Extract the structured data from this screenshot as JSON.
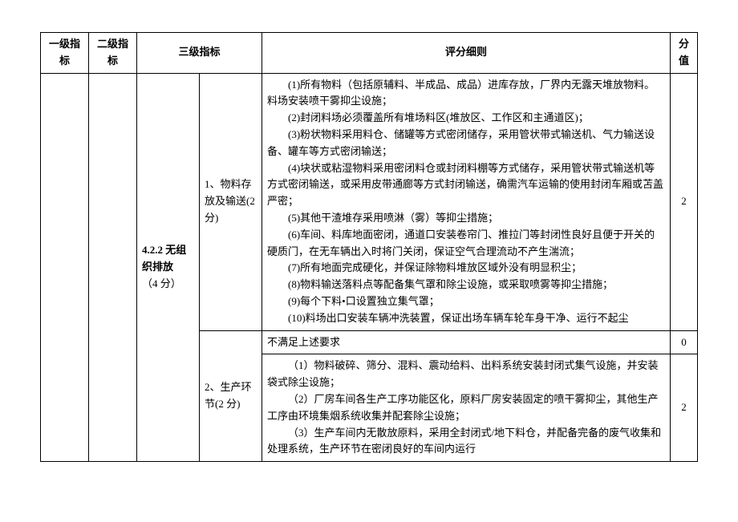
{
  "headers": {
    "c1": "一级指标",
    "c2": "二级指标",
    "c3": "三级指标",
    "c5": "评分细则",
    "c6": "分值"
  },
  "lvl3": {
    "code": "4.2.2 无组织排放",
    "weight": "（4 分）"
  },
  "rows": {
    "r1": {
      "sub": "1、物料存放及输送(2 分)",
      "score": "2",
      "lines": {
        "l1": "(1)所有物料（包括原辅料、半成品、成品）进库存放，厂界内无露天堆放物料。料场安装喷干雾抑尘设施；",
        "l2": "(2)封闭料场必须覆盖所有堆场料区(堆放区、工作区和主通道区)；",
        "l3": "(3)粉状物料采用料仓、储罐等方式密闭储存，采用管状带式输送机、气力输送设备、罐车等方式密闭输送；",
        "l4": "(4)块状或粘湿物料采用密闭料仓或封闭料棚等方式储存，采用管状带式输送机等方式密闭输送，或采用皮带通廊等方式封闭输送，确需汽车运输的使用封闭车厢或苫盖严密；",
        "l5": "(5)其他干渣堆存采用喷淋（雾）等抑尘措施；",
        "l6": "(6)车间、料库地面密闭，通道口安装卷帘门、推拉门等封闭性良好且便于开关的硬质门，在无车辆出入时将门关闭，保证空气合理流动不产生湍流；",
        "l7": "(7)所有地面完成硬化，并保证除物料堆放区域外没有明显积尘；",
        "l8": "(8)物料输送落料点等配备集气罩和除尘设施，或采取喷雾等抑尘措施；",
        "l9": "(9)每个下料•口设置独立集气罩；",
        "l10": "(10)料场出口安装车辆冲洗装置，保证出场车辆车轮车身干净、运行不起尘"
      }
    },
    "r2": {
      "detail": "不满足上述要求",
      "score": "0"
    },
    "r3": {
      "sub": "2、生产环节(2 分)",
      "score": "2",
      "lines": {
        "l1": "（1）物料破碎、筛分、混料、震动给料、出料系统安装封闭式集气设施，并安装袋式除尘设施；",
        "l2": "（2）厂房车间各生产工序功能区化，原料厂房安装固定的喷干雾抑尘，其他生产工序由环境集烟系统收集并配套除尘设施；",
        "l3": "（3）生产车间内无散放原料，采用全封闭式/地下料仓，并配备完备的废气收集和处理系统，生产环节在密闭良好的车间内运行"
      }
    }
  }
}
